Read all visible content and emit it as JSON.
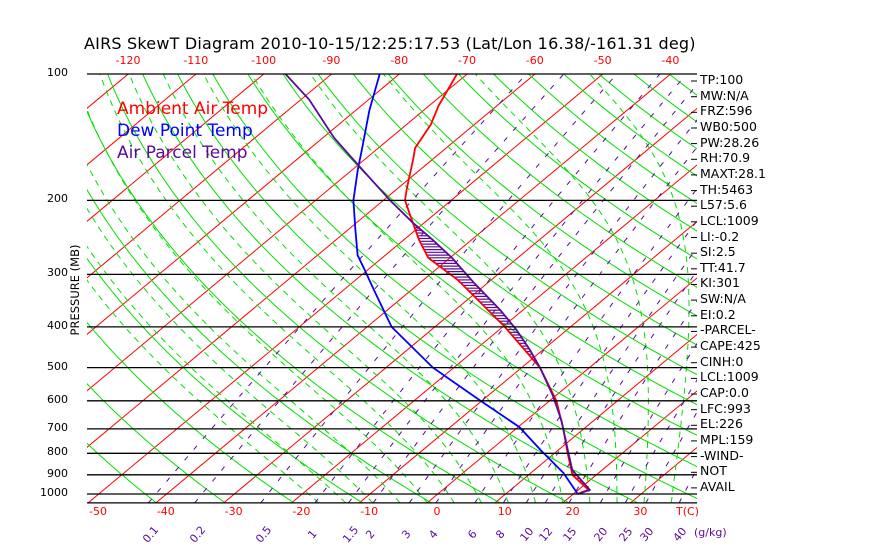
{
  "title": "AIRS SkewT Diagram 2010-10-15/12:25:17.53 (Lat/Lon 16.38/-161.31 deg)",
  "colors": {
    "ambient": "#ff0000",
    "dewpoint": "#0000ff",
    "parcel": "#5a0a9a",
    "isotherm": "#ff0000",
    "adiabat": "#00e000",
    "mixing": "#5a0a9a",
    "isobar": "#000000"
  },
  "legend": [
    "Ambient Air Temp",
    "Dew Point Temp",
    "Air Parcel Temp"
  ],
  "stats": [
    "TP:100",
    "MW:N/A",
    "FRZ:596",
    "WB0:500",
    "PW:28.26",
    "RH:70.9",
    "MAXT:28.1",
    "TH:5463",
    "L57:5.6",
    "LCL:1009",
    "LI:-0.2",
    "SI:2.5",
    "TT:41.7",
    "KI:301",
    "SW:N/A",
    "EI:0.2",
    "-PARCEL-",
    "CAPE:425",
    "CINH:0",
    "LCL:1009",
    "CAP:0.0",
    "LFC:993",
    "EL:226",
    "MPL:159",
    "-WIND-",
    "NOT",
    "AVAIL"
  ],
  "chart_data": {
    "type": "line",
    "title": "AIRS SkewT Diagram 2010-10-15/12:25:17.53 (Lat/Lon 16.38/-161.31 deg)",
    "ylabel": "PRESSURE (MB)",
    "xlabel": "T(C)",
    "mixing_ratio_label": "(g/kg)",
    "ylim": [
      1050,
      100
    ],
    "pressure_ticks": [
      "100",
      "200",
      "300",
      "400",
      "500",
      "600",
      "700",
      "800",
      "900",
      "1000"
    ],
    "top_temp_ticks": [
      "-120",
      "-110",
      "-100",
      "-90",
      "-80",
      "-70",
      "-60",
      "-50",
      "-40"
    ],
    "bottom_temp_ticks": [
      "-50",
      "-40",
      "-30",
      "-20",
      "-10",
      "0",
      "10",
      "20",
      "30"
    ],
    "mixing_ratio_ticks": [
      "0.1",
      "0.2",
      "0.5",
      "1",
      "1.5",
      "2",
      "3",
      "4",
      "6",
      "8",
      "10",
      "12",
      "15",
      "20",
      "25",
      "30",
      "40"
    ],
    "series": [
      {
        "name": "Ambient Air Temp",
        "points": [
          [
            978,
            21.5
          ],
          [
            1000,
            20.6
          ],
          [
            901,
            16.5
          ],
          [
            799,
            11.9
          ],
          [
            700,
            7.0
          ],
          [
            600,
            1.0
          ],
          [
            500,
            -7.3
          ],
          [
            400,
            -19.7
          ],
          [
            309,
            -35.0
          ],
          [
            274,
            -43.2
          ],
          [
            248,
            -47.8
          ],
          [
            217,
            -53.4
          ],
          [
            200,
            -56.8
          ],
          [
            189,
            -58.4
          ],
          [
            160,
            -62.8
          ],
          [
            150,
            -64.6
          ],
          [
            132,
            -66.4
          ],
          [
            119,
            -68.6
          ],
          [
            100,
            -71.5
          ]
        ]
      },
      {
        "name": "Dew Point Temp",
        "points": [
          [
            995,
            20.4
          ],
          [
            891,
            14.8
          ],
          [
            786,
            7.4
          ],
          [
            693,
            0.2
          ],
          [
            600,
            -10.2
          ],
          [
            500,
            -23.1
          ],
          [
            400,
            -36.4
          ],
          [
            327,
            -45.5
          ],
          [
            293,
            -50.4
          ],
          [
            270,
            -54.1
          ],
          [
            235,
            -58.9
          ],
          [
            200,
            -64.4
          ],
          [
            169,
            -69.2
          ],
          [
            150,
            -72.4
          ],
          [
            122,
            -78.0
          ],
          [
            100,
            -82.9
          ]
        ]
      },
      {
        "name": "Air Parcel Temp",
        "points": [
          [
            978,
            21.7
          ],
          [
            1000,
            20.7
          ],
          [
            877,
            15.6
          ],
          [
            786,
            11.4
          ],
          [
            668,
            5.2
          ],
          [
            581,
            -0.6
          ],
          [
            500,
            -7.3
          ],
          [
            454,
            -11.9
          ],
          [
            407,
            -17.4
          ],
          [
            365,
            -23.3
          ],
          [
            315,
            -31.9
          ],
          [
            274,
            -39.7
          ],
          [
            248,
            -45.8
          ],
          [
            226,
            -51.7
          ],
          [
            200,
            -59.0
          ],
          [
            167,
            -69.2
          ],
          [
            142,
            -78.3
          ],
          [
            115,
            -88.8
          ],
          [
            100,
            -96.8
          ]
        ]
      }
    ]
  }
}
